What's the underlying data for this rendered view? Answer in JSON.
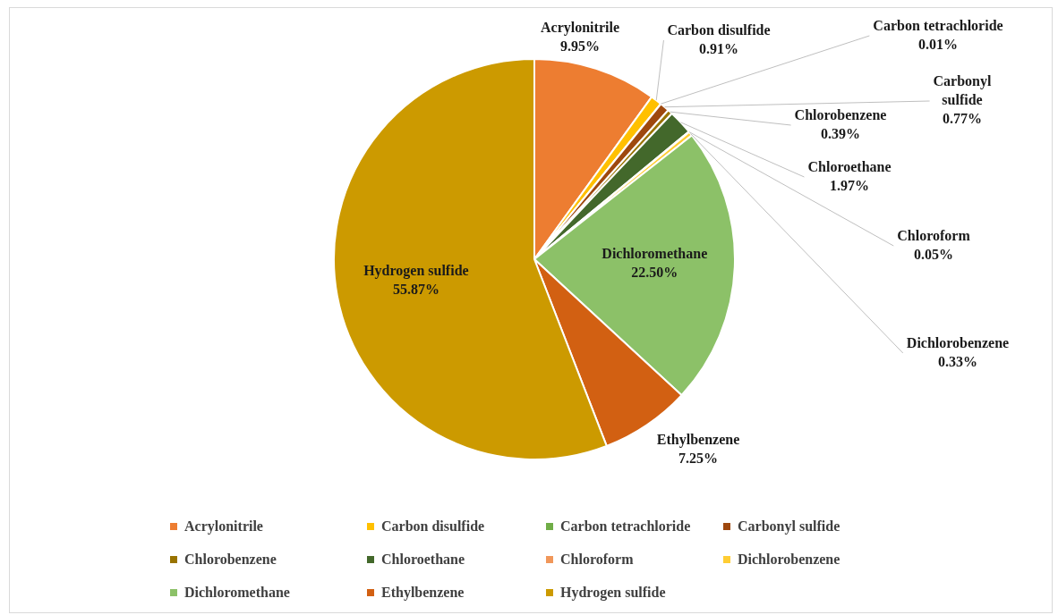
{
  "chart_data": {
    "type": "pie",
    "categories": [
      "Acrylonitrile",
      "Carbon disulfide",
      "Carbon tetrachloride",
      "Carbonyl sulfide",
      "Chlorobenzene",
      "Chloroethane",
      "Chloroform",
      "Dichlorobenzene",
      "Dichloromethane",
      "Ethylbenzene",
      "Hydrogen sulfide"
    ],
    "values": [
      9.95,
      0.91,
      0.01,
      0.77,
      0.39,
      1.97,
      0.05,
      0.33,
      22.5,
      7.25,
      55.87
    ],
    "value_labels": [
      "9.95%",
      "0.91%",
      "0.01%",
      "0.77%",
      "0.39%",
      "1.97%",
      "0.05%",
      "0.33%",
      "22.50%",
      "7.25%",
      "55.87%"
    ],
    "colors": [
      "#ed7d31",
      "#ffc000",
      "#70ad47",
      "#9e480e",
      "#997300",
      "#43682b",
      "#f1975a",
      "#ffcd33",
      "#8cc168",
      "#d26012",
      "#cc9a00"
    ],
    "legend": "bottom"
  }
}
